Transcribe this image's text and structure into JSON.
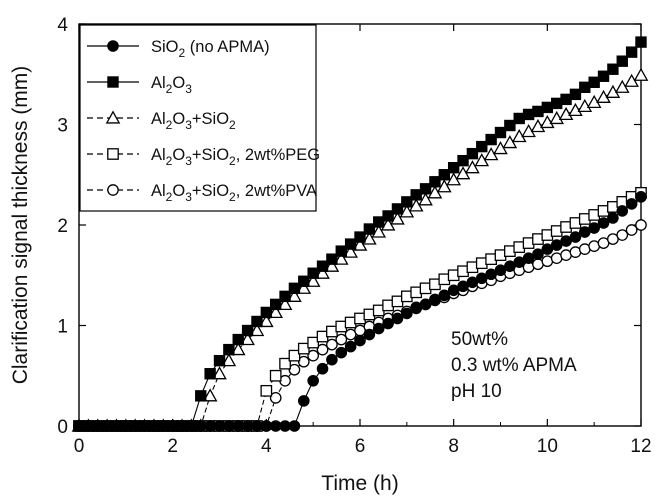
{
  "chart_data": {
    "type": "scatter",
    "xlabel": "Time (h)",
    "ylabel": "Clarification signal thickness (mm)",
    "xlim": [
      0,
      12
    ],
    "ylim": [
      0,
      4
    ],
    "xticks": [
      "0",
      "2",
      "4",
      "6",
      "8",
      "10",
      "12"
    ],
    "yticks": [
      "0",
      "1",
      "2",
      "3",
      "4"
    ],
    "grid": false,
    "legend_position": "top-left",
    "annotations": [
      "50wt%",
      "0.3 wt% APMA",
      "pH 10"
    ],
    "series": [
      {
        "name": "SiO2 (no APMA)",
        "legend": {
          "base": "SiO",
          "sub1": "2",
          "rest": " (no APMA)"
        },
        "marker": "filled-circle",
        "line": "solid",
        "color": "#000000",
        "x": [
          0,
          0.2,
          0.4,
          0.6,
          0.8,
          1.0,
          1.2,
          1.4,
          1.6,
          1.8,
          2.0,
          2.2,
          2.4,
          2.6,
          2.8,
          3.0,
          3.2,
          3.4,
          3.6,
          3.8,
          4.0,
          4.2,
          4.4,
          4.6,
          4.8,
          5.0,
          5.2,
          5.4,
          5.6,
          5.8,
          6.0,
          6.2,
          6.4,
          6.6,
          6.8,
          7.0,
          7.2,
          7.4,
          7.6,
          7.8,
          8.0,
          8.2,
          8.4,
          8.6,
          8.8,
          9.0,
          9.2,
          9.4,
          9.6,
          9.8,
          10.0,
          10.2,
          10.4,
          10.6,
          10.8,
          11.0,
          11.2,
          11.4,
          11.6,
          11.8,
          12.0
        ],
        "y": [
          0,
          0,
          0,
          0,
          0,
          0,
          0,
          0,
          0,
          0,
          0,
          0,
          0,
          0,
          0,
          0,
          0,
          0,
          0,
          0,
          0,
          0,
          0,
          0,
          0.25,
          0.45,
          0.57,
          0.66,
          0.73,
          0.79,
          0.85,
          0.91,
          0.97,
          1.02,
          1.07,
          1.12,
          1.17,
          1.21,
          1.26,
          1.3,
          1.35,
          1.39,
          1.43,
          1.47,
          1.51,
          1.55,
          1.59,
          1.63,
          1.67,
          1.71,
          1.76,
          1.8,
          1.84,
          1.88,
          1.93,
          1.97,
          2.02,
          2.07,
          2.14,
          2.21,
          2.28
        ]
      },
      {
        "name": "Al2O3",
        "legend": {
          "base": "Al",
          "sub1": "2",
          "mid": "O",
          "sub2": "3"
        },
        "marker": "filled-square",
        "line": "solid",
        "color": "#000000",
        "x": [
          0,
          0.2,
          0.4,
          0.6,
          0.8,
          1.0,
          1.2,
          1.4,
          1.6,
          1.8,
          2.0,
          2.2,
          2.4,
          2.6,
          2.8,
          3.0,
          3.2,
          3.4,
          3.6,
          3.8,
          4.0,
          4.2,
          4.4,
          4.6,
          4.8,
          5.0,
          5.2,
          5.4,
          5.6,
          5.8,
          6.0,
          6.2,
          6.4,
          6.6,
          6.8,
          7.0,
          7.2,
          7.4,
          7.6,
          7.8,
          8.0,
          8.2,
          8.4,
          8.6,
          8.8,
          9.0,
          9.2,
          9.4,
          9.6,
          9.8,
          10.0,
          10.2,
          10.4,
          10.6,
          10.8,
          11.0,
          11.2,
          11.4,
          11.6,
          11.8,
          12.0
        ],
        "y": [
          0,
          0,
          0,
          0,
          0,
          0,
          0,
          0,
          0,
          0,
          0,
          0,
          0,
          0.3,
          0.52,
          0.65,
          0.76,
          0.86,
          0.95,
          1.04,
          1.13,
          1.21,
          1.29,
          1.37,
          1.44,
          1.52,
          1.59,
          1.66,
          1.74,
          1.81,
          1.88,
          1.96,
          2.03,
          2.09,
          2.16,
          2.23,
          2.3,
          2.36,
          2.43,
          2.5,
          2.57,
          2.64,
          2.71,
          2.78,
          2.85,
          2.92,
          2.99,
          3.06,
          3.1,
          3.13,
          3.17,
          3.21,
          3.25,
          3.3,
          3.37,
          3.42,
          3.48,
          3.55,
          3.63,
          3.72,
          3.82
        ]
      },
      {
        "name": "Al2O3+SiO2",
        "legend": {
          "base": "Al",
          "sub1": "2",
          "mid": "O",
          "sub2": "3",
          "mid2": "+SiO",
          "sub3": "2"
        },
        "marker": "open-triangle",
        "line": "dashed",
        "color": "#000000",
        "x": [
          0,
          0.2,
          0.4,
          0.6,
          0.8,
          1.0,
          1.2,
          1.4,
          1.6,
          1.8,
          2.0,
          2.2,
          2.4,
          2.6,
          2.8,
          3.0,
          3.2,
          3.4,
          3.6,
          3.8,
          4.0,
          4.2,
          4.4,
          4.6,
          4.8,
          5.0,
          5.2,
          5.4,
          5.6,
          5.8,
          6.0,
          6.2,
          6.4,
          6.6,
          6.8,
          7.0,
          7.2,
          7.4,
          7.6,
          7.8,
          8.0,
          8.2,
          8.4,
          8.6,
          8.8,
          9.0,
          9.2,
          9.4,
          9.6,
          9.8,
          10.0,
          10.2,
          10.4,
          10.6,
          10.8,
          11.0,
          11.2,
          11.4,
          11.6,
          11.8,
          12.0
        ],
        "y": [
          0,
          0,
          0,
          0,
          0,
          0,
          0,
          0,
          0,
          0,
          0,
          0,
          0,
          0,
          0.3,
          0.52,
          0.65,
          0.76,
          0.86,
          0.95,
          1.04,
          1.13,
          1.21,
          1.29,
          1.37,
          1.44,
          1.52,
          1.59,
          1.66,
          1.73,
          1.8,
          1.86,
          1.93,
          2.0,
          2.06,
          2.13,
          2.19,
          2.25,
          2.32,
          2.38,
          2.45,
          2.51,
          2.57,
          2.64,
          2.7,
          2.76,
          2.82,
          2.88,
          2.93,
          2.98,
          3.02,
          3.06,
          3.1,
          3.14,
          3.18,
          3.22,
          3.27,
          3.32,
          3.37,
          3.43,
          3.49
        ]
      },
      {
        "name": "Al2O3+SiO2, 2wt%PEG",
        "legend": {
          "base": "Al",
          "sub1": "2",
          "mid": "O",
          "sub2": "3",
          "mid2": "+SiO",
          "sub3": "2",
          "rest": ", 2wt%PEG"
        },
        "marker": "open-square",
        "line": "dashed",
        "color": "#000000",
        "x": [
          0,
          0.2,
          0.4,
          0.6,
          0.8,
          1.0,
          1.2,
          1.4,
          1.6,
          1.8,
          2.0,
          2.2,
          2.4,
          2.6,
          2.8,
          3.0,
          3.2,
          3.4,
          3.6,
          3.8,
          4.0,
          4.2,
          4.4,
          4.6,
          4.8,
          5.0,
          5.2,
          5.4,
          5.6,
          5.8,
          6.0,
          6.2,
          6.4,
          6.6,
          6.8,
          7.0,
          7.2,
          7.4,
          7.6,
          7.8,
          8.0,
          8.2,
          8.4,
          8.6,
          8.8,
          9.0,
          9.2,
          9.4,
          9.6,
          9.8,
          10.0,
          10.2,
          10.4,
          10.6,
          10.8,
          11.0,
          11.2,
          11.4,
          11.6,
          11.8,
          12.0
        ],
        "y": [
          0,
          0,
          0,
          0,
          0,
          0,
          0,
          0,
          0,
          0,
          0,
          0,
          0,
          0,
          0,
          0,
          0,
          0,
          0,
          0,
          0.35,
          0.5,
          0.62,
          0.7,
          0.77,
          0.83,
          0.89,
          0.94,
          0.99,
          1.03,
          1.07,
          1.11,
          1.15,
          1.2,
          1.24,
          1.29,
          1.33,
          1.37,
          1.41,
          1.46,
          1.5,
          1.54,
          1.58,
          1.62,
          1.66,
          1.7,
          1.74,
          1.78,
          1.82,
          1.86,
          1.9,
          1.94,
          1.98,
          2.02,
          2.06,
          2.1,
          2.14,
          2.18,
          2.23,
          2.28,
          2.32
        ]
      },
      {
        "name": "Al2O3+SiO2, 2wt%PVA",
        "legend": {
          "base": "Al",
          "sub1": "2",
          "mid": "O",
          "sub2": "3",
          "mid2": "+SiO",
          "sub3": "2",
          "rest": ", 2wt%PVA"
        },
        "marker": "open-circle",
        "line": "dashed",
        "color": "#000000",
        "x": [
          0,
          0.2,
          0.4,
          0.6,
          0.8,
          1.0,
          1.2,
          1.4,
          1.6,
          1.8,
          2.0,
          2.2,
          2.4,
          2.6,
          2.8,
          3.0,
          3.2,
          3.4,
          3.6,
          3.8,
          4.0,
          4.2,
          4.4,
          4.6,
          4.8,
          5.0,
          5.2,
          5.4,
          5.6,
          5.8,
          6.0,
          6.2,
          6.4,
          6.6,
          6.8,
          7.0,
          7.2,
          7.4,
          7.6,
          7.8,
          8.0,
          8.2,
          8.4,
          8.6,
          8.8,
          9.0,
          9.2,
          9.4,
          9.6,
          9.8,
          10.0,
          10.2,
          10.4,
          10.6,
          10.8,
          11.0,
          11.2,
          11.4,
          11.6,
          11.8,
          12.0
        ],
        "y": [
          0,
          0,
          0,
          0,
          0,
          0,
          0,
          0,
          0,
          0,
          0,
          0,
          0,
          0,
          0,
          0,
          0,
          0,
          0,
          0,
          0,
          0.28,
          0.45,
          0.56,
          0.64,
          0.7,
          0.76,
          0.81,
          0.86,
          0.91,
          0.95,
          0.99,
          1.03,
          1.07,
          1.1,
          1.14,
          1.18,
          1.21,
          1.25,
          1.28,
          1.32,
          1.35,
          1.39,
          1.42,
          1.45,
          1.49,
          1.52,
          1.55,
          1.58,
          1.61,
          1.64,
          1.67,
          1.7,
          1.73,
          1.76,
          1.79,
          1.82,
          1.86,
          1.9,
          1.95,
          2.0
        ]
      }
    ]
  }
}
